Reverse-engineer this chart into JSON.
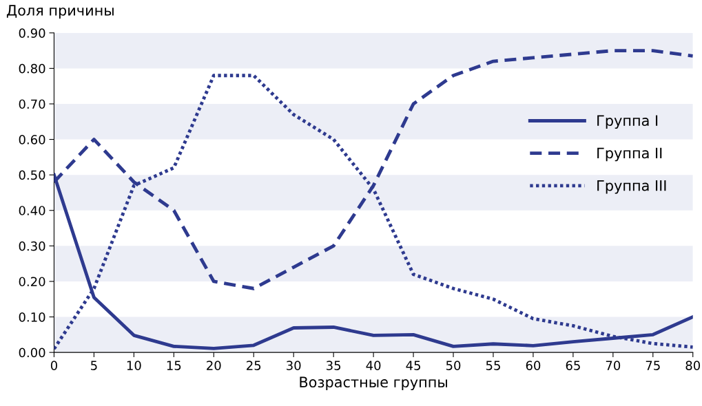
{
  "chart_data": {
    "type": "line",
    "xlabel": "Возрастные группы",
    "ylabel": "Доля причины",
    "x": [
      0,
      5,
      10,
      15,
      20,
      25,
      30,
      35,
      40,
      45,
      50,
      55,
      60,
      65,
      70,
      75,
      80
    ],
    "series": [
      {
        "name": "Группа I",
        "color": "#2e3a8f",
        "line_style": "solid",
        "values": [
          0.5,
          0.155,
          0.048,
          0.017,
          0.011,
          0.02,
          0.069,
          0.071,
          0.048,
          0.05,
          0.017,
          0.024,
          0.019,
          0.03,
          0.04,
          0.05,
          0.1
        ]
      },
      {
        "name": "Группа II",
        "color": "#2e3a8f",
        "line_style": "dashed",
        "values": [
          0.48,
          0.6,
          0.48,
          0.4,
          0.2,
          0.18,
          0.24,
          0.3,
          0.47,
          0.7,
          0.78,
          0.82,
          0.83,
          0.84,
          0.85,
          0.85,
          0.835
        ]
      },
      {
        "name": "Группа III",
        "color": "#2e3a8f",
        "line_style": "dotted",
        "values": [
          0.01,
          0.18,
          0.47,
          0.52,
          0.78,
          0.78,
          0.67,
          0.6,
          0.46,
          0.22,
          0.18,
          0.15,
          0.095,
          0.075,
          0.045,
          0.025,
          0.015
        ]
      }
    ],
    "xlim": [
      0,
      80
    ],
    "xticks": [
      0,
      5,
      10,
      15,
      20,
      25,
      30,
      35,
      40,
      45,
      50,
      55,
      60,
      65,
      70,
      75,
      80
    ],
    "ylim": [
      0,
      0.9
    ],
    "yticks": [
      {
        "value": 0,
        "label": "0.00"
      },
      {
        "value": 0.1,
        "label": "0.10"
      },
      {
        "value": 0.2,
        "label": "0.20"
      },
      {
        "value": 0.3,
        "label": "0.30"
      },
      {
        "value": 0.4,
        "label": "0.40"
      },
      {
        "value": 0.5,
        "label": "0.50"
      },
      {
        "value": 0.6,
        "label": "0.60"
      },
      {
        "value": 0.7,
        "label": "0.70"
      },
      {
        "value": 0.8,
        "label": "0.80"
      },
      {
        "value": 0.9,
        "label": "0.90"
      }
    ],
    "bands": [
      {
        "axis": "y",
        "from": 0.0,
        "to": 0.1,
        "color": "#eceef6"
      },
      {
        "axis": "y",
        "from": 0.2,
        "to": 0.3,
        "color": "#eceef6"
      },
      {
        "axis": "y",
        "from": 0.4,
        "to": 0.5,
        "color": "#eceef6"
      },
      {
        "axis": "y",
        "from": 0.6,
        "to": 0.7,
        "color": "#eceef6"
      },
      {
        "axis": "y",
        "from": 0.8,
        "to": 0.9,
        "color": "#eceef6"
      }
    ],
    "legend": "right",
    "grid": false
  }
}
